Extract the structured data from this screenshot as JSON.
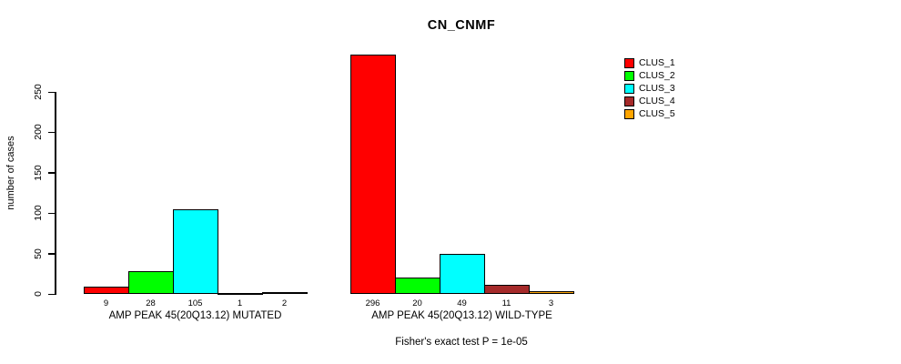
{
  "title": "CN_CNMF",
  "subtitle": "Fisher's exact test P = 1e-05",
  "ylabel": "number of cases",
  "chart_data": {
    "type": "bar",
    "title": "CN_CNMF",
    "ylabel": "number of cases",
    "annotation": "Fisher's exact test P = 1e-05",
    "grid": false,
    "legend_position": "topright",
    "ylim": [
      0,
      250
    ],
    "yticks": [
      0,
      50,
      100,
      150,
      200,
      250
    ],
    "categories": [
      "AMP PEAK 45(20Q13.12) MUTATED",
      "AMP PEAK 45(20Q13.12) WILD-TYPE"
    ],
    "series": [
      {
        "name": "CLUS_1",
        "color": "#FF0000",
        "values": [
          9,
          296
        ]
      },
      {
        "name": "CLUS_2",
        "color": "#00FF00",
        "values": [
          28,
          20
        ]
      },
      {
        "name": "CLUS_3",
        "color": "#00FFFF",
        "values": [
          105,
          49
        ]
      },
      {
        "name": "CLUS_4",
        "color": "#A52A2A",
        "values": [
          1,
          11
        ]
      },
      {
        "name": "CLUS_5",
        "color": "#FFA500",
        "values": [
          2,
          3
        ]
      }
    ],
    "bar_value_labels_shown": true
  }
}
